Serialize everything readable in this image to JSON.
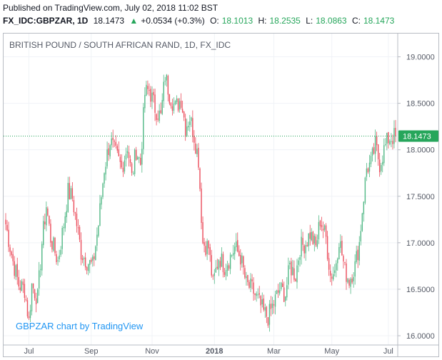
{
  "header": {
    "published": "Published on TradingView.com, July 02, 2018 11:02 BST",
    "symbol": "FX_IDC:GBPZAR, 1D",
    "last": "18.1473",
    "arrow": "▲",
    "change": "+0.0534 (+0.3%)",
    "o_label": "O:",
    "o_value": "18.1013",
    "h_label": "H:",
    "h_value": "18.2535",
    "l_label": "L:",
    "l_value": "18.0863",
    "c_label": "C:",
    "c_value": "18.1473"
  },
  "colors": {
    "up": "#53b987",
    "down": "#eb4d5c",
    "grid": "#f0f3f7",
    "price_line": "#26a65b",
    "watermark": "#2196f3",
    "axis_text": "#555a66"
  },
  "chart_data": {
    "type": "candlestick",
    "title": "BRITISH POUND / SOUTH AFRICAN RAND, 1D, FX_IDC",
    "watermark": "GBPZAR chart by TradingView",
    "last_price": 18.1473,
    "last_price_label": "18.1473",
    "ylim": [
      15.9,
      19.25
    ],
    "y_ticks": [
      "16.0000",
      "16.5000",
      "17.0000",
      "17.5000",
      "18.0000",
      "18.5000",
      "19.0000"
    ],
    "x_ticks": [
      "Jul",
      "Sep",
      "Nov",
      "2018",
      "Mar",
      "May",
      "Jul"
    ],
    "x_tick_index": [
      16,
      59,
      101,
      144,
      185,
      225,
      264
    ],
    "n_points": 270,
    "anchors": [
      [
        0,
        17.2
      ],
      [
        5,
        16.8
      ],
      [
        9,
        16.55
      ],
      [
        13,
        16.5
      ],
      [
        16,
        16.15
      ],
      [
        18,
        16.55
      ],
      [
        22,
        16.4
      ],
      [
        25,
        17.0
      ],
      [
        28,
        17.4
      ],
      [
        31,
        17.05
      ],
      [
        36,
        16.8
      ],
      [
        40,
        17.2
      ],
      [
        43,
        17.55
      ],
      [
        46,
        17.48
      ],
      [
        49,
        17.2
      ],
      [
        52,
        16.9
      ],
      [
        56,
        16.8
      ],
      [
        60,
        16.75
      ],
      [
        64,
        17.2
      ],
      [
        68,
        17.8
      ],
      [
        72,
        18.1
      ],
      [
        76,
        17.95
      ],
      [
        80,
        17.8
      ],
      [
        84,
        18.05
      ],
      [
        87,
        17.7
      ],
      [
        90,
        18.0
      ],
      [
        93,
        17.85
      ],
      [
        96,
        18.6
      ],
      [
        99,
        18.65
      ],
      [
        103,
        18.45
      ],
      [
        107,
        18.35
      ],
      [
        110,
        18.8
      ],
      [
        113,
        18.6
      ],
      [
        117,
        18.45
      ],
      [
        121,
        18.55
      ],
      [
        124,
        18.25
      ],
      [
        127,
        18.35
      ],
      [
        130,
        18.15
      ],
      [
        133,
        17.9
      ],
      [
        134,
        17.6
      ],
      [
        136,
        17.0
      ],
      [
        140,
        16.95
      ],
      [
        143,
        16.55
      ],
      [
        147,
        16.85
      ],
      [
        151,
        16.75
      ],
      [
        155,
        16.85
      ],
      [
        158,
        16.95
      ],
      [
        162,
        16.85
      ],
      [
        166,
        16.55
      ],
      [
        170,
        16.5
      ],
      [
        175,
        16.35
      ],
      [
        178,
        16.25
      ],
      [
        181,
        16.2
      ],
      [
        185,
        16.35
      ],
      [
        189,
        16.5
      ],
      [
        193,
        16.45
      ],
      [
        196,
        16.75
      ],
      [
        200,
        16.65
      ],
      [
        203,
        16.95
      ],
      [
        207,
        17.0
      ],
      [
        210,
        17.1
      ],
      [
        214,
        16.95
      ],
      [
        217,
        17.25
      ],
      [
        221,
        17.05
      ],
      [
        224,
        16.65
      ],
      [
        227,
        16.7
      ],
      [
        230,
        17.05
      ],
      [
        234,
        16.7
      ],
      [
        237,
        16.6
      ],
      [
        241,
        16.75
      ],
      [
        244,
        17.0
      ],
      [
        246,
        17.35
      ],
      [
        249,
        17.8
      ],
      [
        252,
        17.85
      ],
      [
        255,
        18.05
      ],
      [
        258,
        17.85
      ],
      [
        261,
        18.0
      ],
      [
        264,
        18.12
      ],
      [
        269,
        18.1473
      ]
    ]
  }
}
